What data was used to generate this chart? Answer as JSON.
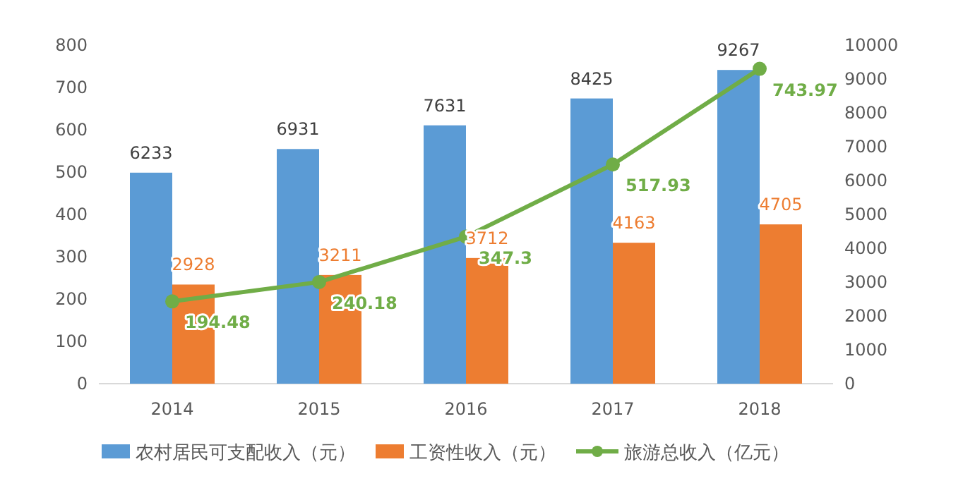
{
  "chart_data": {
    "type": "bar",
    "categories": [
      "2014",
      "2015",
      "2016",
      "2017",
      "2018"
    ],
    "series": [
      {
        "name": "农村居民可支配收入（元）",
        "color": "#5b9bd5",
        "values": [
          6233,
          6931,
          7631,
          8425,
          9267
        ],
        "axis": "y2"
      },
      {
        "name": "工资性收入（元）",
        "color": "#ed7d31",
        "values": [
          2928,
          3211,
          3712,
          4163,
          4705
        ],
        "axis": "y2"
      },
      {
        "name": "旅游总收入（亿元）",
        "type": "line",
        "color": "#70ad47",
        "values": [
          194.48,
          240.18,
          347.3,
          517.93,
          743.97
        ]
      }
    ],
    "ylim": [
      0,
      800
    ],
    "yticks": [
      0,
      100,
      200,
      300,
      400,
      500,
      600,
      700,
      800
    ],
    "y2lim": [
      0,
      10000
    ],
    "y2ticks": [
      0,
      1000,
      2000,
      3000,
      4000,
      5000,
      6000,
      7000,
      8000,
      9000,
      10000
    ],
    "data_labels": true,
    "legend": "bottom",
    "marker": "circle",
    "line_style": "solid",
    "grid": false
  }
}
